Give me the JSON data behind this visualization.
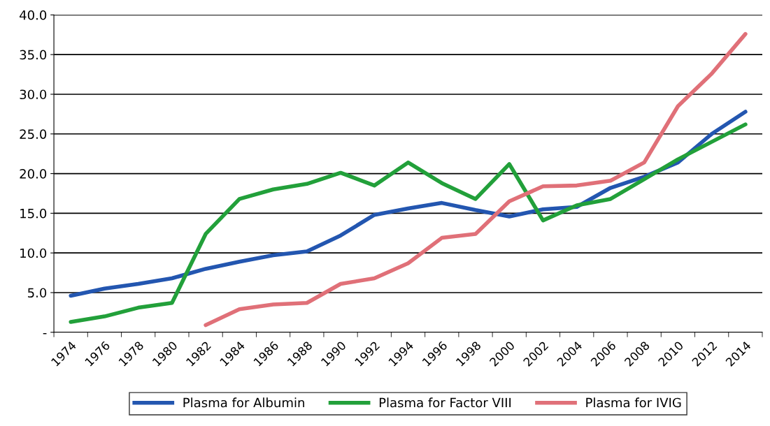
{
  "chart_data": {
    "type": "line",
    "categories": [
      "1974",
      "1976",
      "1978",
      "1980",
      "1982",
      "1984",
      "1986",
      "1988",
      "1990",
      "1992",
      "1994",
      "1996",
      "1998",
      "2000",
      "2002",
      "2004",
      "2006",
      "2008",
      "2010",
      "2012",
      "2014"
    ],
    "series": [
      {
        "name": "Plasma for Albumin",
        "color": "#2356b0",
        "values": [
          4.6,
          5.5,
          6.1,
          6.8,
          8.0,
          8.9,
          9.7,
          10.2,
          12.2,
          14.8,
          15.6,
          16.3,
          15.4,
          14.6,
          15.5,
          15.8,
          18.2,
          19.6,
          21.4,
          25.0,
          27.8
        ]
      },
      {
        "name": "Plasma for Factor VIII",
        "color": "#22a03a",
        "values": [
          1.3,
          2.0,
          3.1,
          3.7,
          12.4,
          16.8,
          18.0,
          18.7,
          20.1,
          18.5,
          21.4,
          18.8,
          16.8,
          21.2,
          14.1,
          16.0,
          16.8,
          19.3,
          21.8,
          24.0,
          26.2
        ]
      },
      {
        "name": "Plasma for IVIG",
        "color": "#e07078",
        "values": [
          null,
          null,
          null,
          null,
          0.9,
          2.9,
          3.5,
          3.7,
          6.1,
          6.8,
          8.7,
          11.9,
          12.4,
          16.5,
          18.4,
          18.5,
          19.1,
          21.4,
          28.5,
          32.6,
          37.6
        ]
      }
    ],
    "ylim": [
      0,
      40
    ],
    "yticks": [
      {
        "value": 0,
        "label": "-"
      },
      {
        "value": 5,
        "label": "5.0"
      },
      {
        "value": 10,
        "label": "10.0"
      },
      {
        "value": 15,
        "label": "15.0"
      },
      {
        "value": 20,
        "label": "20.0"
      },
      {
        "value": 25,
        "label": "25.0"
      },
      {
        "value": 30,
        "label": "30.0"
      },
      {
        "value": 35,
        "label": "35.0"
      },
      {
        "value": 40,
        "label": "40.0"
      }
    ],
    "grid": "y",
    "legend": "bottom",
    "line_style": "solid",
    "marker": "none"
  }
}
